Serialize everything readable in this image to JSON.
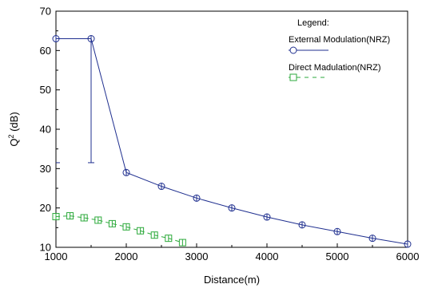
{
  "chart_data": {
    "type": "line",
    "title": "",
    "xlabel": "Distance(m)",
    "ylabel_base": "Q",
    "ylabel_sup": "2",
    "ylabel_unit": " (dB)",
    "xlim": [
      1000,
      6000
    ],
    "ylim": [
      10,
      70
    ],
    "xticks": [
      1000,
      2000,
      3000,
      4000,
      5000,
      6000
    ],
    "yticks": [
      10,
      20,
      30,
      40,
      50,
      60,
      70
    ],
    "grid": false,
    "legend": {
      "title": "Legend:",
      "placement": "top-right"
    },
    "series": [
      {
        "name": "External Modulation(NRZ)",
        "color": "#1f2f8f",
        "marker": "circle",
        "line": "solid",
        "x": [
          1000,
          1500,
          2000,
          2500,
          3000,
          3500,
          4000,
          4500,
          5000,
          5500,
          6000
        ],
        "y": [
          63,
          63,
          29,
          25.5,
          22.5,
          20,
          17.7,
          15.7,
          14,
          12.3,
          10.8
        ]
      },
      {
        "name": "Direct Madulation(NRZ)",
        "color": "#2eaa3c",
        "marker": "square",
        "line": "dashed",
        "x": [
          1000,
          1200,
          1400,
          1600,
          1800,
          2000,
          2200,
          2400,
          2600,
          2800
        ],
        "y": [
          17.8,
          18,
          17.5,
          16.9,
          16,
          15.2,
          14.2,
          13.1,
          12.3,
          11.2
        ]
      }
    ],
    "error_bar": {
      "series": 0,
      "x": 1500,
      "y_low": 31.5,
      "y_high": 63
    },
    "artifact_tick": {
      "series": 0,
      "x": 1000,
      "y": 31.5
    }
  }
}
